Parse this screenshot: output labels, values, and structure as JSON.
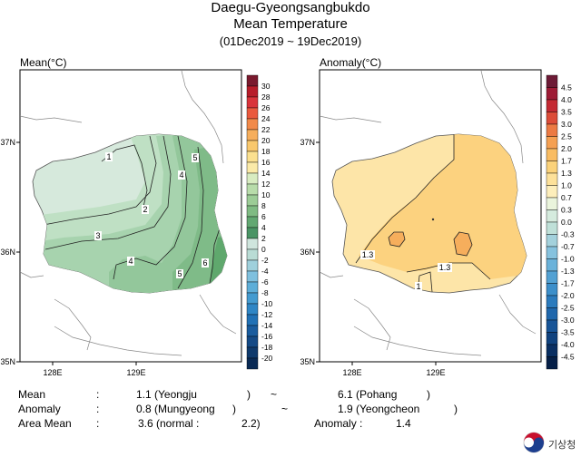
{
  "title": {
    "line1": "Daegu-Gyeongsangbukdo",
    "line2": "Mean Temperature",
    "line3": "(01Dec2019 ~ 19Dec2019)"
  },
  "panels": {
    "mean": {
      "label": "Mean(°C)",
      "lat_ticks": [
        "37N",
        "36N",
        "35N"
      ],
      "lon_ticks": [
        "128E",
        "129E"
      ],
      "contour_labels": [
        "1",
        "2",
        "3",
        "4",
        "4",
        "5",
        "5",
        "6"
      ],
      "colorbar": [
        "30",
        "28",
        "26",
        "24",
        "22",
        "20",
        "18",
        "16",
        "14",
        "12",
        "10",
        "8",
        "6",
        "4",
        "2",
        "0",
        "-2",
        "-4",
        "-6",
        "-8",
        "-10",
        "-12",
        "-14",
        "-16",
        "-18",
        "-20"
      ],
      "colors": [
        "#7a1a2e",
        "#b71d2a",
        "#d9343b",
        "#ea5a3e",
        "#f28a4a",
        "#f6ae5c",
        "#f9c86d",
        "#fbe08f",
        "#fbeaa8",
        "#d8ecc1",
        "#b8dcaa",
        "#9ccc96",
        "#7fbb83",
        "#62a872",
        "#4a9465",
        "#cfe5dd",
        "#b9dcd5",
        "#9fd0dc",
        "#7fc0de",
        "#5eaed8",
        "#449bd0",
        "#2f86c5",
        "#2171b5",
        "#1a5c9e",
        "#154a86",
        "#0f3a6c",
        "#0a2a54"
      ]
    },
    "anomaly": {
      "label": "Anomaly(°C)",
      "lat_ticks": [
        "37N",
        "36N",
        "35N"
      ],
      "lon_ticks": [
        "128E",
        "129E"
      ],
      "contour_labels": [
        "1.3",
        "1.3",
        "1"
      ],
      "colorbar": [
        "4.5",
        "4.0",
        "3.5",
        "3.0",
        "2.5",
        "2.0",
        "1.7",
        "1.3",
        "1.0",
        "0.7",
        "0.3",
        "0.0",
        "-0.3",
        "-0.7",
        "-1.0",
        "-1.3",
        "-1.7",
        "-2.0",
        "-2.5",
        "-3.0",
        "-3.5",
        "-4.0",
        "-4.5"
      ],
      "colors": [
        "#6d1b36",
        "#9e1b35",
        "#c42a33",
        "#dc4c38",
        "#ec7a43",
        "#f5a052",
        "#f9bc62",
        "#fbd27a",
        "#fde19a",
        "#fdeebb",
        "#eaf4dc",
        "#d5ebde",
        "#bfe0d8",
        "#a3d1dc",
        "#86c2de",
        "#6ab2da",
        "#52a1d3",
        "#3c8fca",
        "#2b7bbd",
        "#1f67ac",
        "#175497",
        "#10427e",
        "#0a2f62",
        "#061f47"
      ]
    }
  },
  "stats": {
    "mean_label": "Mean",
    "mean_min": "1.1 (Yeongju",
    "mean_max": "6.1 (Pohang",
    "anomaly_label": "Anomaly",
    "anomaly_min": "0.8 (Mungyeong",
    "anomaly_max": "1.9 (Yeongcheon",
    "area_label": "Area Mean",
    "area_value": "3.6 (normal :",
    "area_normal": "2.2)",
    "area_anomaly_label": "Anomaly :",
    "area_anomaly_value": "1.4",
    "colon": ":",
    "close": ")",
    "tilde": "~"
  },
  "logo": {
    "text": "기상청"
  }
}
